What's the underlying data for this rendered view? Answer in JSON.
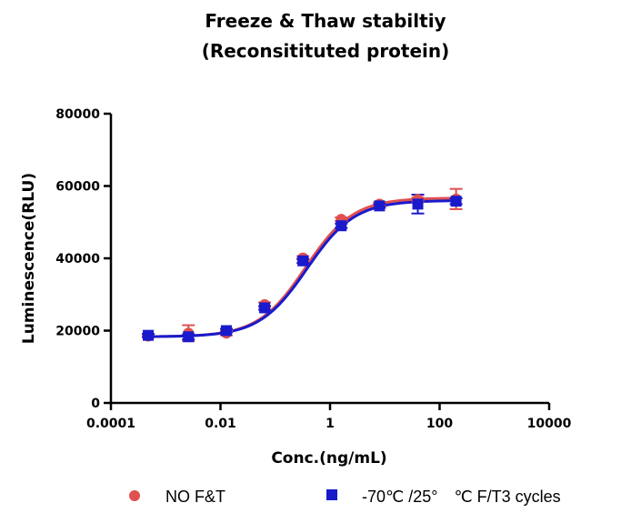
{
  "chart_data": {
    "type": "scatter",
    "title_lines": [
      "Freeze & Thaw stabiltiy",
      "(Reconsitituted protein)"
    ],
    "xlabel": "Conc.(ng/mL)",
    "ylabel": "Luminescence(RLU)",
    "x_scale": "log",
    "xlim": [
      0.0001,
      10000
    ],
    "ylim": [
      0,
      80000
    ],
    "x_ticks": [
      0.0001,
      0.01,
      1,
      100,
      10000
    ],
    "x_tick_labels": [
      "0.0001",
      "0.01",
      "1",
      "100",
      "10000"
    ],
    "y_ticks": [
      0,
      20000,
      40000,
      60000,
      80000
    ],
    "y_tick_labels": [
      "0",
      "20000",
      "40000",
      "60000",
      "80000"
    ],
    "grid": false,
    "legend_position": "bottom",
    "series": [
      {
        "name": "NO F&T",
        "color": "#e05050",
        "marker": "circle",
        "points": [
          {
            "x": 0.00048,
            "y": 18500,
            "err": 400
          },
          {
            "x": 0.0026,
            "y": 19300,
            "err": 2200
          },
          {
            "x": 0.0128,
            "y": 19300,
            "err": 600
          },
          {
            "x": 0.064,
            "y": 27200,
            "err": 600
          },
          {
            "x": 0.32,
            "y": 40100,
            "err": 500
          },
          {
            "x": 1.6,
            "y": 50800,
            "err": 500
          },
          {
            "x": 8.0,
            "y": 55000,
            "err": 500
          },
          {
            "x": 40,
            "y": 56300,
            "err": 500
          },
          {
            "x": 200,
            "y": 56400,
            "err": 2800
          }
        ],
        "fit": {
          "bottom": 18300,
          "top": 56700,
          "logEC50": -0.445,
          "hill": 1.0
        }
      },
      {
        "name": "-70℃ /25°　℃ F/T3 cycles",
        "color": "#1a1acc",
        "marker": "square",
        "points": [
          {
            "x": 0.00048,
            "y": 18700,
            "err": 400
          },
          {
            "x": 0.0026,
            "y": 18300,
            "err": 700
          },
          {
            "x": 0.0128,
            "y": 20000,
            "err": 500
          },
          {
            "x": 0.064,
            "y": 26300,
            "err": 500
          },
          {
            "x": 0.32,
            "y": 39300,
            "err": 600
          },
          {
            "x": 1.6,
            "y": 49000,
            "err": 600
          },
          {
            "x": 8.0,
            "y": 54500,
            "err": 500
          },
          {
            "x": 40,
            "y": 55000,
            "err": 2600
          },
          {
            "x": 200,
            "y": 55800,
            "err": 800
          }
        ],
        "fit": {
          "bottom": 18300,
          "top": 56000,
          "logEC50": -0.42,
          "hill": 1.0
        }
      }
    ]
  }
}
